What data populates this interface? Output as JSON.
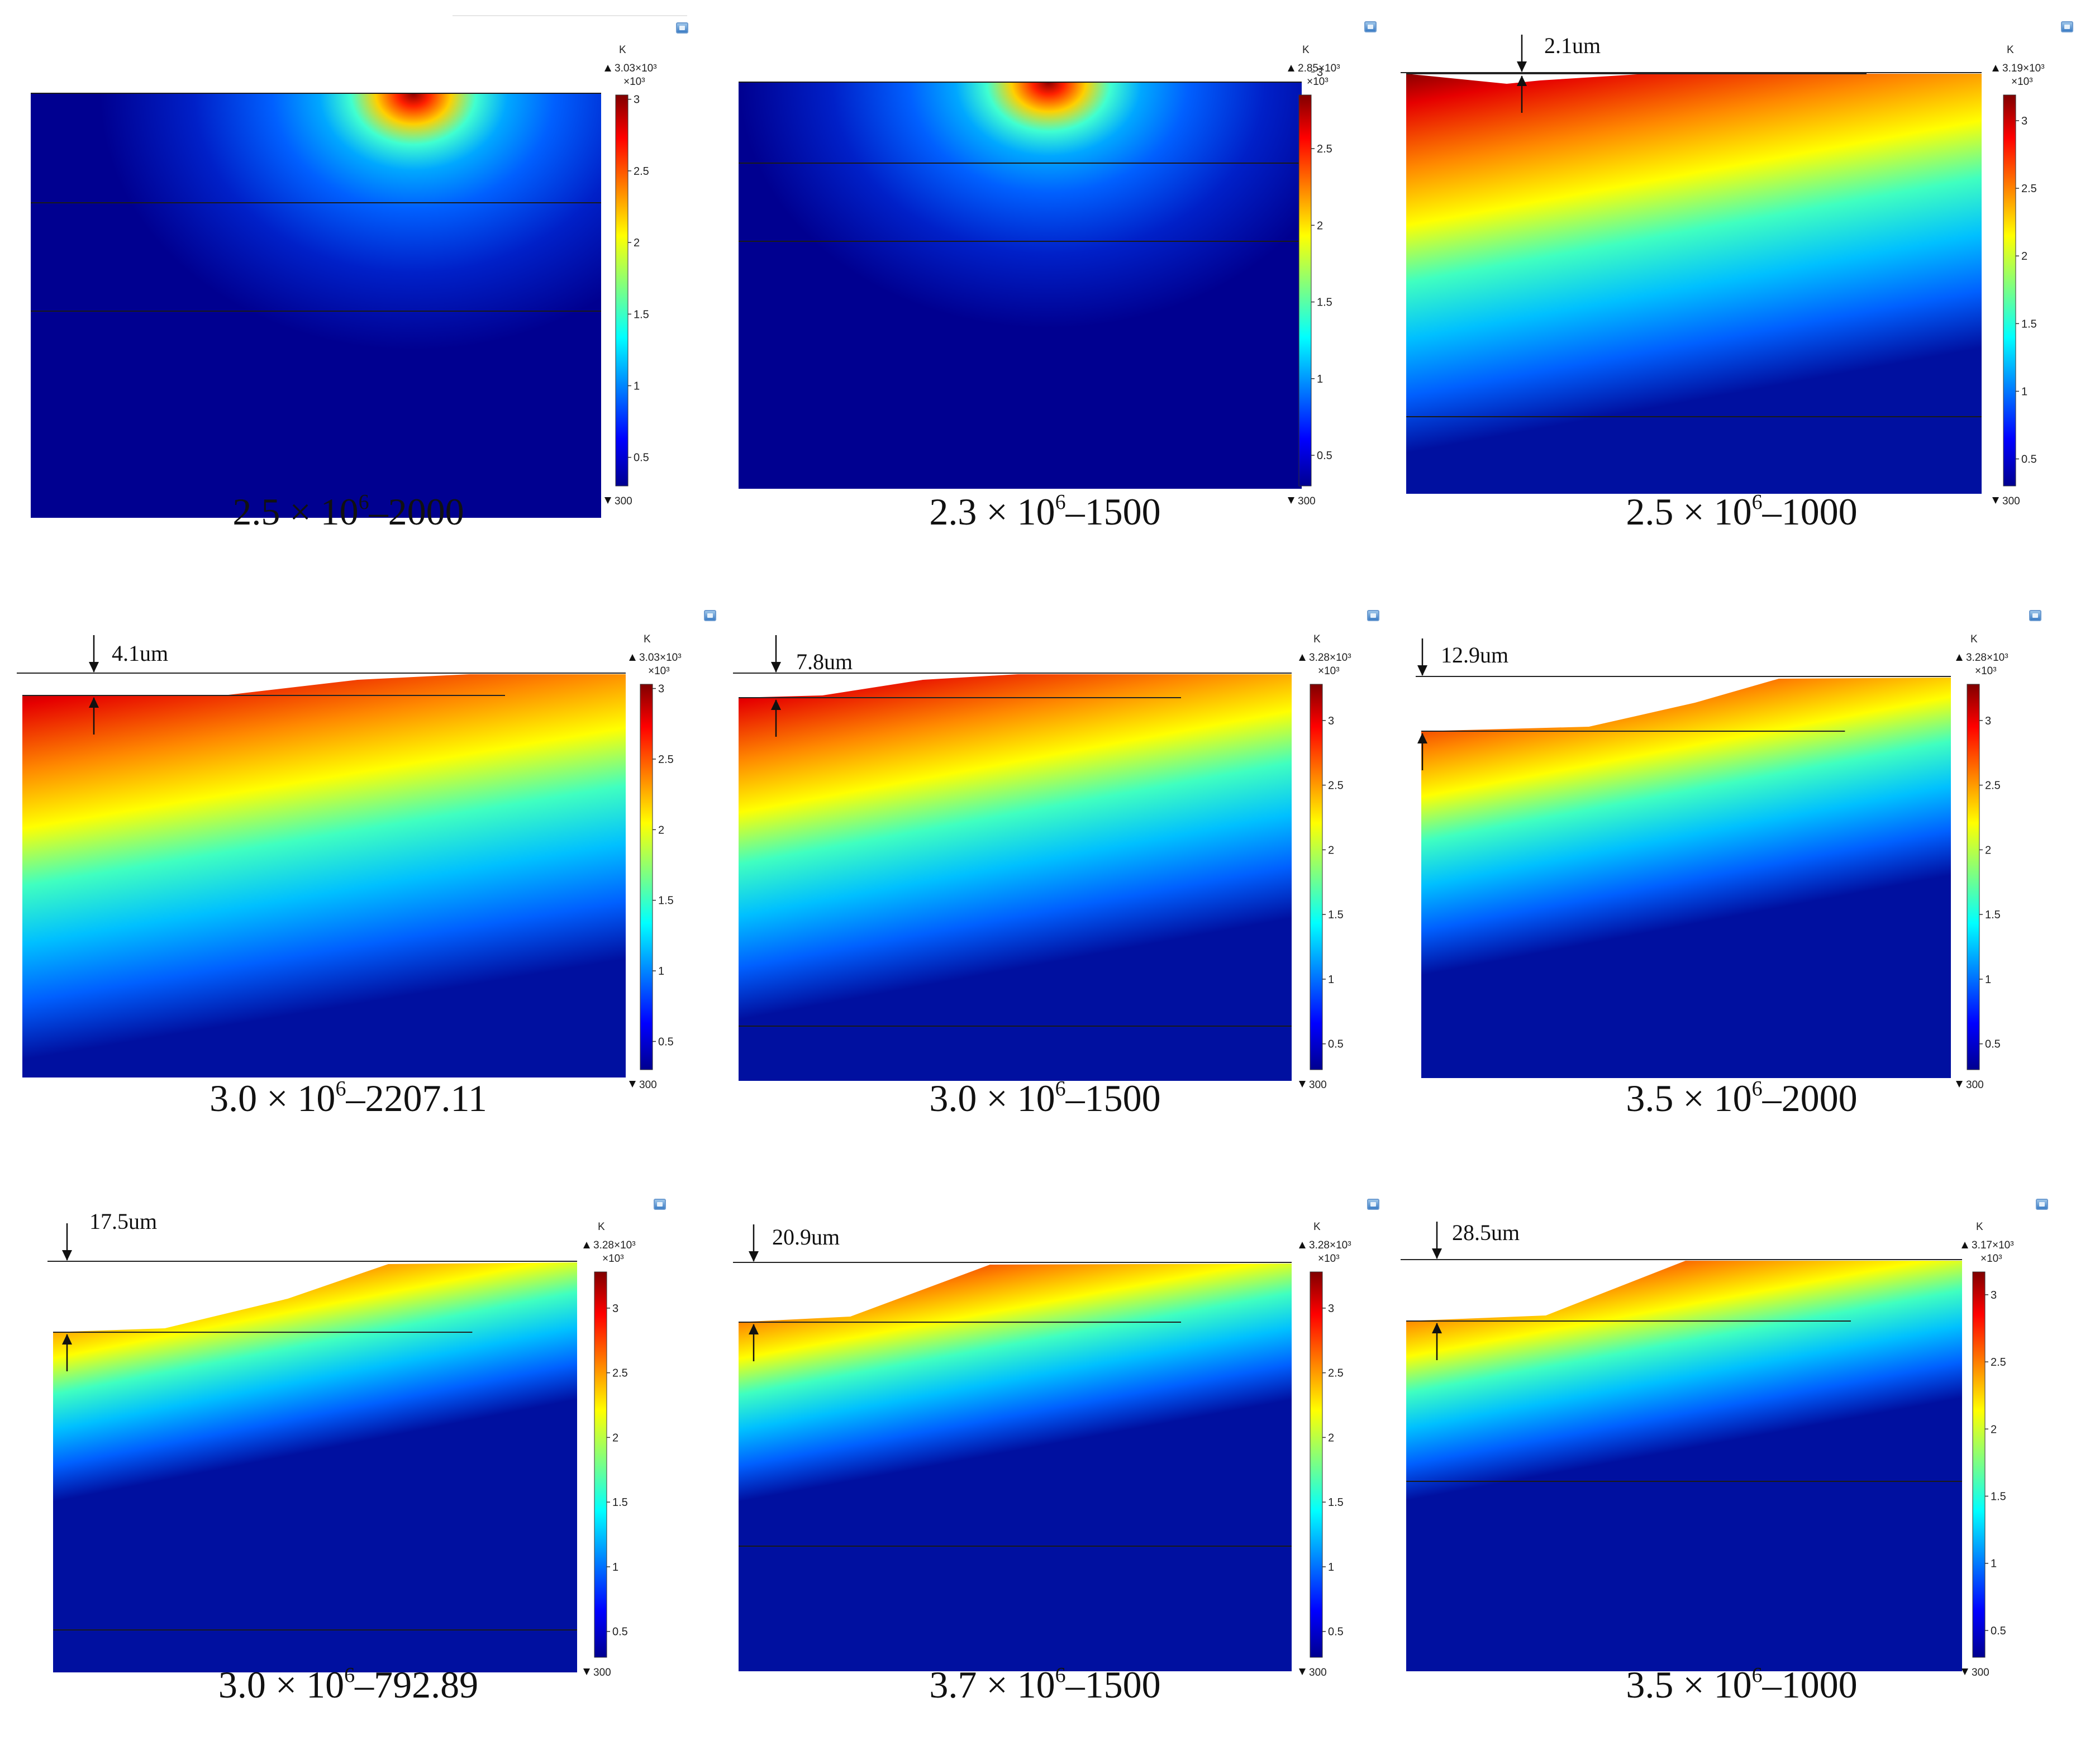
{
  "colorbar": {
    "unit": "K",
    "multiplier": "×10³",
    "ticks": [
      "3",
      "2.5",
      "2",
      "1.5",
      "1",
      "0.5"
    ],
    "min_label": "300",
    "tick_values": [
      3,
      2.5,
      2,
      1.5,
      1,
      0.5
    ]
  },
  "panels": [
    {
      "id": "p1",
      "caption_base": "2.5 × 10",
      "caption_exp": "6",
      "caption_tail": "–2000",
      "max_label": "3.03×10³",
      "max_value": 3.03,
      "depth_label": ""
    },
    {
      "id": "p2",
      "caption_base": "2.3 × 10",
      "caption_exp": "6",
      "caption_tail": "–1500",
      "max_label": "2.85×10³",
      "max_value": 2.85,
      "depth_label": ""
    },
    {
      "id": "p3",
      "caption_base": "2.5 × 10",
      "caption_exp": "6",
      "caption_tail": "–1000",
      "max_label": "3.19×10³",
      "max_value": 3.19,
      "depth_label": "2.1um"
    },
    {
      "id": "p4",
      "caption_base": "3.0 × 10",
      "caption_exp": "6",
      "caption_tail": "–2207.11",
      "max_label": "3.03×10³",
      "max_value": 3.03,
      "depth_label": "4.1um"
    },
    {
      "id": "p5",
      "caption_base": "3.0 × 10",
      "caption_exp": "6",
      "caption_tail": "–1500",
      "max_label": "3.28×10³",
      "max_value": 3.28,
      "depth_label": "7.8um"
    },
    {
      "id": "p6",
      "caption_base": "3.5 × 10",
      "caption_exp": "6",
      "caption_tail": "–2000",
      "max_label": "3.28×10³",
      "max_value": 3.28,
      "depth_label": "12.9um"
    },
    {
      "id": "p7",
      "caption_base": "3.0 × 10",
      "caption_exp": "6",
      "caption_tail": "–792.89",
      "max_label": "3.28×10³",
      "max_value": 3.28,
      "depth_label": "17.5um"
    },
    {
      "id": "p8",
      "caption_base": "3.7 × 10",
      "caption_exp": "6",
      "caption_tail": "–1500",
      "max_label": "3.28×10³",
      "max_value": 3.28,
      "depth_label": "20.9um"
    },
    {
      "id": "p9",
      "caption_base": "3.5 × 10",
      "caption_exp": "6",
      "caption_tail": "–1000",
      "max_label": "3.17×10³",
      "max_value": 3.17,
      "depth_label": "28.5um"
    }
  ],
  "colors": {
    "jet": [
      "#00008f",
      "#0000ff",
      "#00ffff",
      "#ffff00",
      "#ff0000",
      "#800000"
    ]
  }
}
